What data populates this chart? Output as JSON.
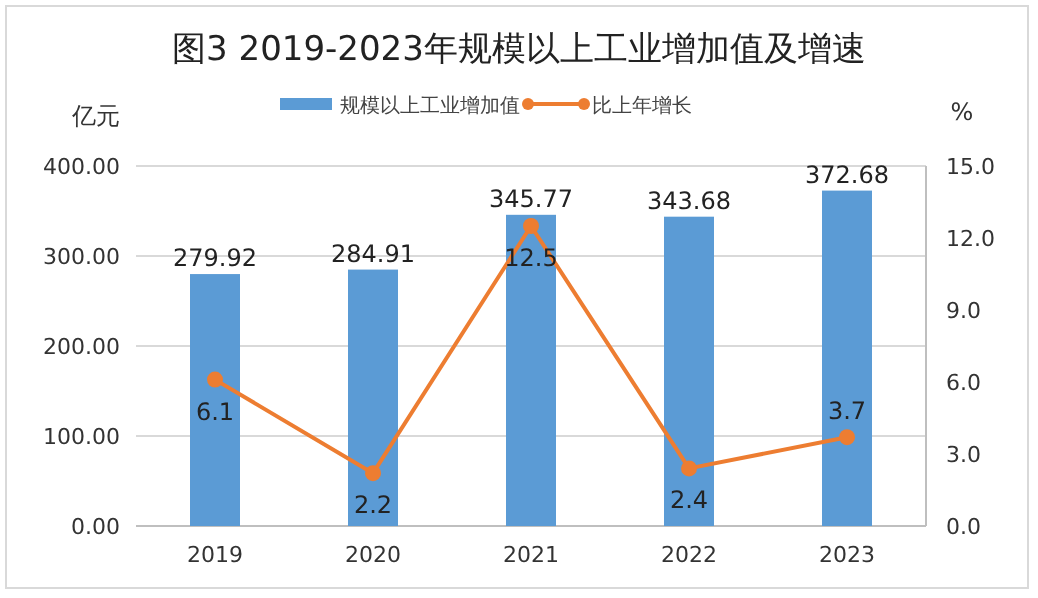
{
  "chart_data": {
    "type": "bar",
    "title": "图3  2019-2023年规模以上工业增加值及增速",
    "ylabel": "亿元",
    "y2label": "%",
    "categories": [
      "2019",
      "2020",
      "2021",
      "2022",
      "2023"
    ],
    "series": [
      {
        "name": "规模以上工业增加值",
        "color": "#5b9bd5",
        "values": [
          279.92,
          284.91,
          345.77,
          343.68,
          372.68
        ]
      },
      {
        "name": "比上年增长",
        "type": "line",
        "axis": "y2",
        "color": "#ed7d31",
        "marker": "circle",
        "values": [
          6.1,
          2.2,
          12.5,
          2.4,
          3.7
        ]
      }
    ],
    "ylim": [
      0,
      400
    ],
    "yticks": [
      {
        "value": 0,
        "label": "0.00"
      },
      {
        "value": 100,
        "label": "100.00"
      },
      {
        "value": 200,
        "label": "200.00"
      },
      {
        "value": 300,
        "label": "300.00"
      },
      {
        "value": 400,
        "label": "400.00"
      }
    ],
    "y2lim": [
      0,
      15
    ],
    "y2ticks": [
      {
        "value": 0,
        "label": "0.0"
      },
      {
        "value": 3,
        "label": "3.0"
      },
      {
        "value": 6,
        "label": "6.0"
      },
      {
        "value": 9,
        "label": "9.0"
      },
      {
        "value": 12,
        "label": "12.0"
      },
      {
        "value": 15,
        "label": "15.0"
      }
    ],
    "grid": "y",
    "legend": "top",
    "data_labels": true
  }
}
